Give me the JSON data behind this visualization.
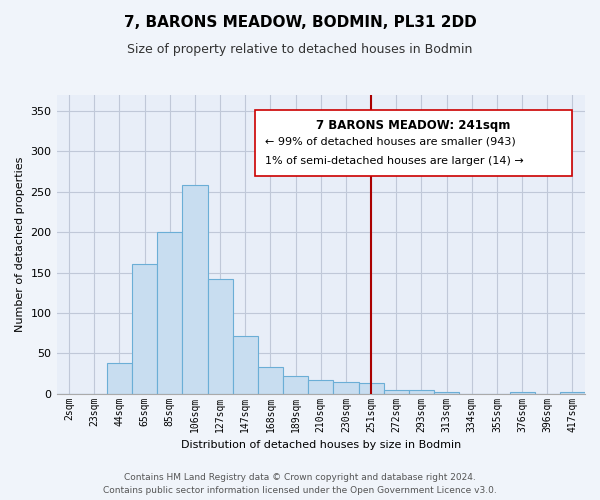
{
  "title": "7, BARONS MEADOW, BODMIN, PL31 2DD",
  "subtitle": "Size of property relative to detached houses in Bodmin",
  "xlabel": "Distribution of detached houses by size in Bodmin",
  "ylabel": "Number of detached properties",
  "bar_labels": [
    "2sqm",
    "23sqm",
    "44sqm",
    "65sqm",
    "85sqm",
    "106sqm",
    "127sqm",
    "147sqm",
    "168sqm",
    "189sqm",
    "210sqm",
    "230sqm",
    "251sqm",
    "272sqm",
    "293sqm",
    "313sqm",
    "334sqm",
    "355sqm",
    "376sqm",
    "396sqm",
    "417sqm"
  ],
  "bar_heights": [
    0,
    0,
    38,
    160,
    200,
    258,
    142,
    72,
    33,
    22,
    17,
    14,
    13,
    5,
    5,
    2,
    0,
    0,
    2,
    0,
    2
  ],
  "bar_color": "#c8ddf0",
  "bar_edge_color": "#6baed6",
  "vline_x_index": 12,
  "vline_color": "#aa0000",
  "annotation_title": "7 BARONS MEADOW: 241sqm",
  "annotation_line1": "← 99% of detached houses are smaller (943)",
  "annotation_line2": "1% of semi-detached houses are larger (14) →",
  "ylim": [
    0,
    370
  ],
  "yticks": [
    0,
    50,
    100,
    150,
    200,
    250,
    300,
    350
  ],
  "footer_line1": "Contains HM Land Registry data © Crown copyright and database right 2024.",
  "footer_line2": "Contains public sector information licensed under the Open Government Licence v3.0.",
  "bg_color": "#f0f4fa",
  "plot_bg_color": "#e8eef8",
  "grid_color": "#c0c8d8",
  "title_fontsize": 11,
  "subtitle_fontsize": 9,
  "annotation_fontsize": 8,
  "footer_fontsize": 6.5
}
